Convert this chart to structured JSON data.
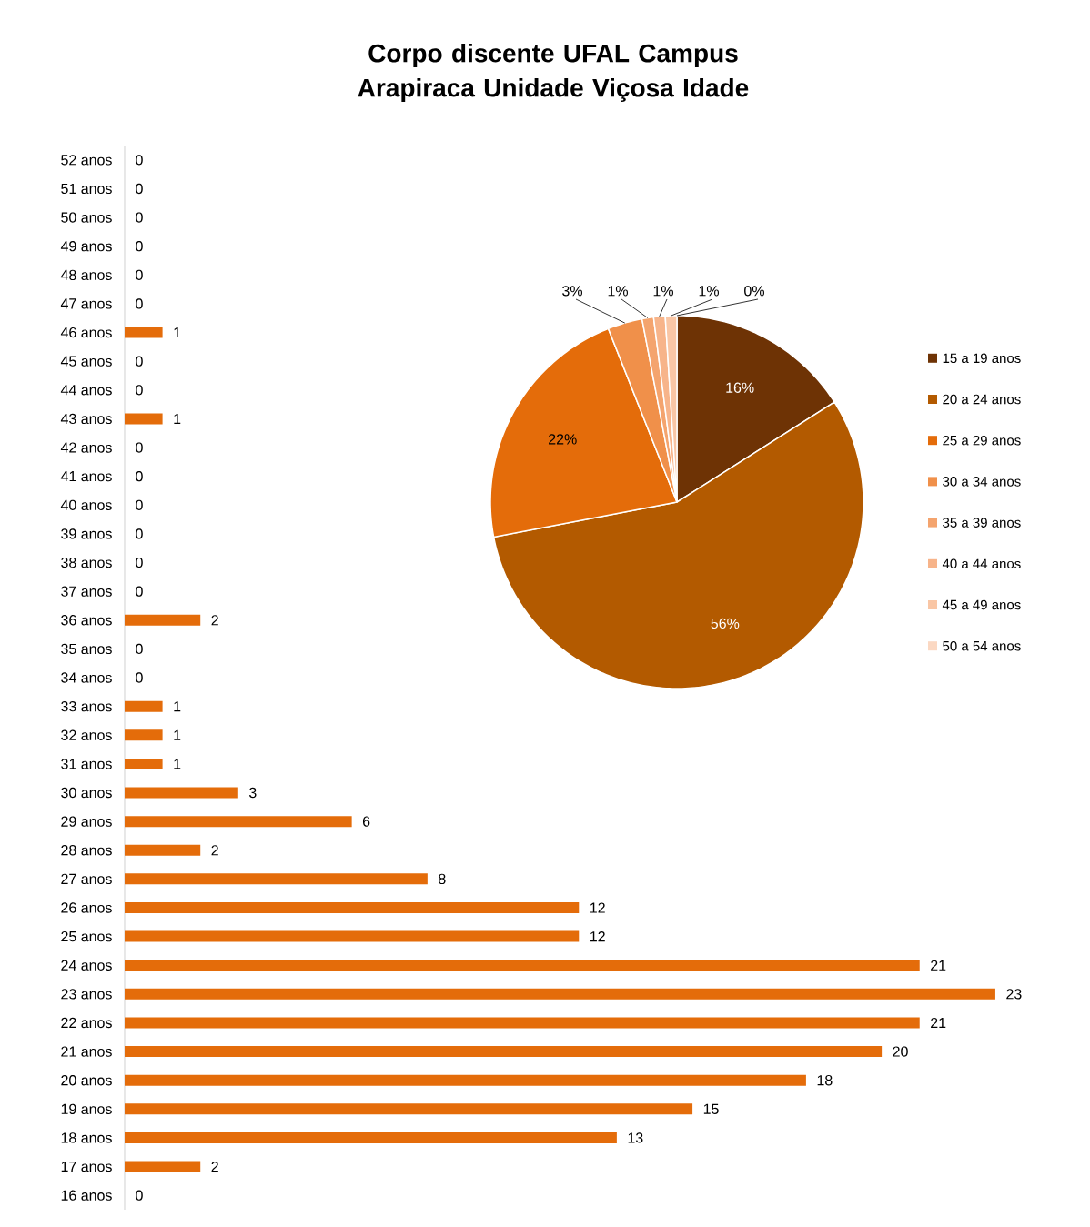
{
  "chart_data": [
    {
      "type": "bar",
      "title": "Corpo discente UFAL Campus Arapiraca Unidade Viçosa Idade",
      "orientation": "horizontal",
      "data_labels": true,
      "color": "#e46c0a",
      "categories": [
        "52 anos",
        "51 anos",
        "50 anos",
        "49 anos",
        "48 anos",
        "47 anos",
        "46 anos",
        "45 anos",
        "44 anos",
        "43 anos",
        "42 anos",
        "41 anos",
        "40 anos",
        "39 anos",
        "38 anos",
        "37 anos",
        "36 anos",
        "35 anos",
        "34 anos",
        "33 anos",
        "32 anos",
        "31 anos",
        "30 anos",
        "29 anos",
        "28 anos",
        "27 anos",
        "26 anos",
        "25 anos",
        "24 anos",
        "23 anos",
        "22 anos",
        "21 anos",
        "20 anos",
        "19 anos",
        "18 anos",
        "17 anos",
        "16 anos"
      ],
      "values": [
        0,
        0,
        0,
        0,
        0,
        0,
        1,
        0,
        0,
        1,
        0,
        0,
        0,
        0,
        0,
        0,
        2,
        0,
        0,
        1,
        1,
        1,
        3,
        6,
        2,
        8,
        12,
        12,
        21,
        23,
        21,
        20,
        18,
        15,
        13,
        2,
        0
      ]
    },
    {
      "type": "pie",
      "legend": "right",
      "categories": [
        "15 a 19 anos",
        "20 a 24 anos",
        "25 a 29 anos",
        "30 a 34 anos",
        "35 a 39 anos",
        "40 a 44 anos",
        "45 a 49 anos",
        "50 a 54 anos"
      ],
      "values": [
        16,
        56,
        22,
        3,
        1,
        1,
        1,
        0
      ],
      "value_labels": [
        "16%",
        "56%",
        "22%",
        "3%",
        "1%",
        "1%",
        "1%",
        "0%"
      ],
      "colors": [
        "#6e3305",
        "#b35a00",
        "#e46c0a",
        "#f0904a",
        "#f4a46e",
        "#f7b48a",
        "#f9c6a5",
        "#fbd8c2"
      ]
    }
  ]
}
